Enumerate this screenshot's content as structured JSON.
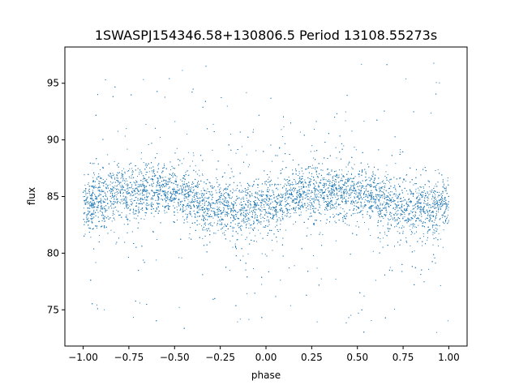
{
  "chart_data": {
    "type": "scatter",
    "title": "1SWASPJ154346.58+130806.5 Period 13108.55273s",
    "xlabel": "phase",
    "ylabel": "flux",
    "xlim": [
      -1.1,
      1.1
    ],
    "ylim": [
      71.8,
      98.2
    ],
    "xticks": [
      -1.0,
      -0.75,
      -0.5,
      -0.25,
      0.0,
      0.25,
      0.5,
      0.75,
      1.0
    ],
    "xtick_labels": [
      "−1.00",
      "−0.75",
      "−0.50",
      "−0.25",
      "0.00",
      "0.25",
      "0.50",
      "0.75",
      "1.00"
    ],
    "yticks": [
      75,
      80,
      85,
      90,
      95
    ],
    "ytick_labels": [
      "75",
      "80",
      "85",
      "90",
      "95"
    ],
    "grid": false,
    "series": [
      {
        "color": "#1f77b4",
        "trend": {
          "phase": [
            -1.0,
            -0.75,
            -0.6,
            -0.5,
            -0.25,
            -0.1,
            0.0,
            0.25,
            0.4,
            0.5,
            0.75,
            0.9,
            1.0
          ],
          "flux": [
            84.4,
            85.4,
            85.7,
            85.3,
            84.0,
            83.8,
            84.1,
            85.4,
            85.6,
            85.2,
            84.0,
            83.9,
            84.4
          ]
        },
        "core_spread": 1.2,
        "outlier_range": [
          72.8,
          96.9
        ]
      }
    ]
  }
}
